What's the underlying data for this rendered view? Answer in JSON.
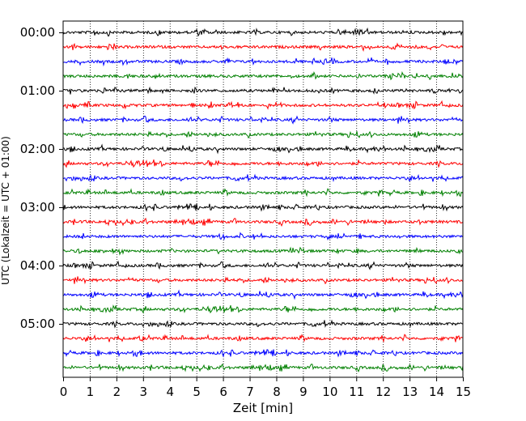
{
  "chart_data": {
    "type": "line",
    "subtype": "helicorder",
    "xlabel": "Zeit  [min]",
    "ylabel": "UTC (Lokalzeit = UTC + 01:00)",
    "xlim": [
      0,
      15
    ],
    "x_ticks": [
      0,
      1,
      2,
      3,
      4,
      5,
      6,
      7,
      8,
      9,
      10,
      11,
      12,
      13,
      14,
      15
    ],
    "x_tick_labels": [
      "0",
      "1",
      "2",
      "3",
      "4",
      "5",
      "6",
      "7",
      "8",
      "9",
      "10",
      "11",
      "12",
      "13",
      "14",
      "15"
    ],
    "x_grid": true,
    "x_grid_style": "dotted",
    "y_tick_labels": [
      "00:00",
      "01:00",
      "02:00",
      "03:00",
      "04:00",
      "05:00"
    ],
    "rows_per_hour": 4,
    "row_minutes": 15,
    "rows_total": 24,
    "row_start_times": [
      "00:00",
      "00:15",
      "00:30",
      "00:45",
      "01:00",
      "01:15",
      "01:30",
      "01:45",
      "02:00",
      "02:15",
      "02:30",
      "02:45",
      "03:00",
      "03:15",
      "03:30",
      "03:45",
      "04:00",
      "04:15",
      "04:30",
      "04:45",
      "05:00",
      "05:15",
      "05:30",
      "05:45"
    ],
    "row_colors": [
      "#000000",
      "#ff0000",
      "#0000ff",
      "#008000"
    ]
  }
}
